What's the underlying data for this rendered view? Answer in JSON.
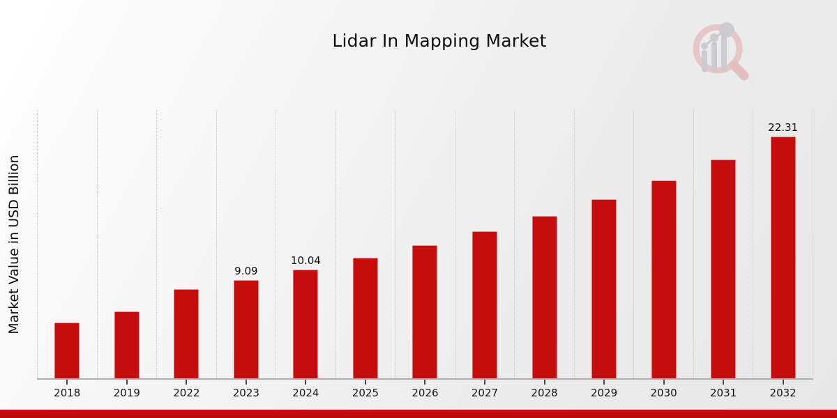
{
  "page": {
    "footer_accent_color": "#c00b0b",
    "background_style": "light diagonal gradient",
    "logo_icon": "magnifier-bar-chart-watermark"
  },
  "chart_data": {
    "type": "bar",
    "title": "Lidar In Mapping Market",
    "xlabel": "",
    "ylabel": "Market Value in USD Billion",
    "ylim": [
      0,
      24.9
    ],
    "grid": "vertical-dotted",
    "legend": "none",
    "bar_color": "#c50d0d",
    "categories": [
      "2018",
      "2019",
      "2022",
      "2023",
      "2024",
      "2025",
      "2026",
      "2027",
      "2028",
      "2029",
      "2030",
      "2031",
      "2032"
    ],
    "bars": [
      {
        "year": "2018",
        "value": 5.17,
        "label": ""
      },
      {
        "year": "2019",
        "value": 6.2,
        "label": ""
      },
      {
        "year": "2022",
        "value": 8.25,
        "label": ""
      },
      {
        "year": "2023",
        "value": 9.09,
        "label": "9.09"
      },
      {
        "year": "2024",
        "value": 10.04,
        "label": "10.04"
      },
      {
        "year": "2025",
        "value": 11.1,
        "label": ""
      },
      {
        "year": "2026",
        "value": 12.27,
        "label": ""
      },
      {
        "year": "2027",
        "value": 13.55,
        "label": ""
      },
      {
        "year": "2028",
        "value": 14.97,
        "label": ""
      },
      {
        "year": "2029",
        "value": 16.55,
        "label": ""
      },
      {
        "year": "2030",
        "value": 18.28,
        "label": ""
      },
      {
        "year": "2031",
        "value": 20.2,
        "label": ""
      },
      {
        "year": "2032",
        "value": 22.31,
        "label": "22.31"
      }
    ]
  }
}
